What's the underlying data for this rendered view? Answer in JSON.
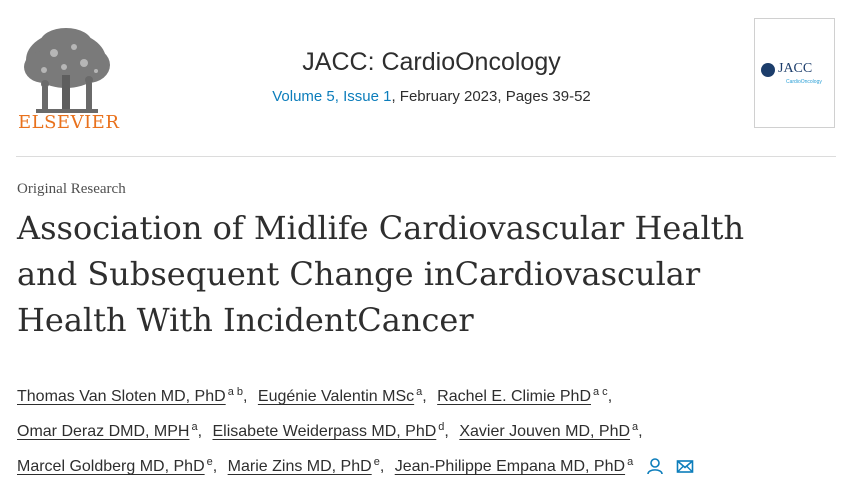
{
  "journal": {
    "publisher": "ELSEVIER",
    "title": "JACC: CardioOncology",
    "volume_link": "Volume 5, Issue 1",
    "meta_rest": ", February 2023, Pages 39-52",
    "cover_title": "JACC",
    "cover_subtitle": "CardioOncology"
  },
  "article": {
    "type": "Original Research",
    "title_lines": [
      "Association of Midlife Cardiovascular Health",
      "and Subsequent Change inCardiovascular",
      "Health With IncidentCancer"
    ]
  },
  "authors": {
    "lines": [
      [
        {
          "name": "Thomas Van Sloten MD, PhD",
          "aff": "a b"
        },
        {
          "name": "Eugénie Valentin MSc",
          "aff": "a"
        },
        {
          "name": "Rachel E. Climie PhD",
          "aff": "a c"
        }
      ],
      [
        {
          "name": "Omar Deraz DMD, MPH",
          "aff": "a"
        },
        {
          "name": "Elisabete Weiderpass MD, PhD",
          "aff": "d"
        },
        {
          "name": "Xavier Jouven MD, PhD",
          "aff": "a"
        }
      ],
      [
        {
          "name": "Marcel Goldberg MD, PhD",
          "aff": "e"
        },
        {
          "name": "Marie Zins MD, PhD",
          "aff": "e"
        },
        {
          "name": "Jean-Philippe Empana MD, PhD",
          "aff": "a"
        }
      ]
    ],
    "icons": [
      "person-icon",
      "envelope-icon"
    ]
  },
  "colors": {
    "link": "#0c7dbb",
    "elsevier_orange": "#e9711c",
    "text": "#2e2e2e"
  }
}
